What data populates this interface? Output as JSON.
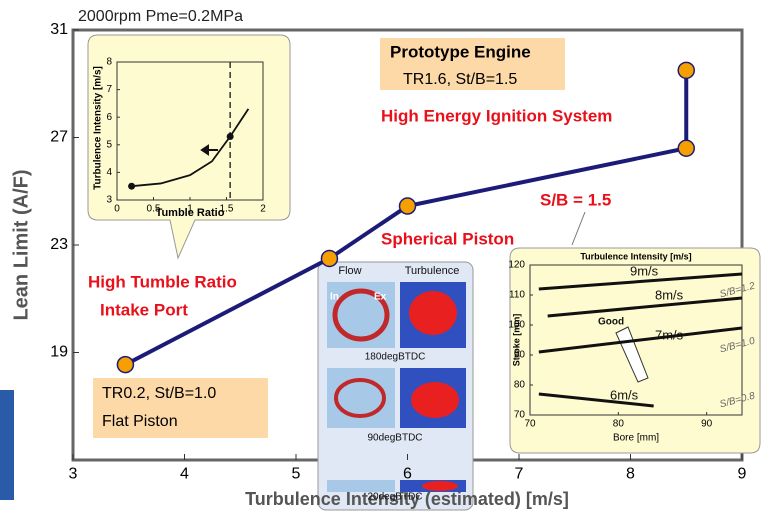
{
  "chart_data": [
    {
      "type": "line",
      "title": "2000rpm Pme=0.2MPa",
      "x_label": "Turbulence Intensity (estimated) [m/s]",
      "y_label": "Lean Limit (A/F)",
      "x": [
        3.47,
        5.3,
        6.0,
        8.5,
        8.5
      ],
      "values": [
        18.55,
        22.5,
        24.45,
        26.6,
        29.5
      ],
      "color": "#1c1c78",
      "marker_color": "#f5a000",
      "xlim": [
        3,
        9
      ],
      "ylim": [
        15,
        31
      ],
      "xticks": [
        3,
        4,
        5,
        6,
        7,
        8,
        9
      ],
      "yticks": [
        19,
        23,
        27,
        31
      ],
      "annotations": [
        "Prototype Engine",
        "TR1.6,  St/B=1.5",
        "High Energy Ignition System",
        "S/B = 1.5",
        "Spherical Piston",
        "High Tumble Ratio",
        "Intake Port",
        "TR0.2,  St/B=1.0",
        "Flat Piston"
      ]
    },
    {
      "type": "line",
      "x_label": "Tumble Ratio",
      "y_label": "Turbulence Intensity [m/s]",
      "x": [
        0.2,
        0.6,
        1.0,
        1.3,
        1.55,
        1.8
      ],
      "values": [
        3.5,
        3.6,
        3.9,
        4.4,
        5.3,
        6.3
      ],
      "color": "#111111",
      "points": {
        "x": [
          0.2,
          1.55
        ],
        "values": [
          3.5,
          5.3
        ]
      },
      "reference_x": 1.55,
      "xlim": [
        0,
        2
      ],
      "ylim": [
        3,
        8
      ],
      "xticks": [
        0,
        0.5,
        1,
        1.5,
        2
      ],
      "yticks": [
        3,
        4,
        5,
        6,
        7,
        8
      ]
    },
    {
      "type": "line",
      "title": "Turbulence Intensity [m/s]",
      "x_label": "Bore [mm]",
      "y_label": "Stroke [mm]",
      "color": "#111111",
      "series": [
        {
          "name": "9m/s",
          "x": [
            71,
            94
          ],
          "values": [
            112,
            117
          ]
        },
        {
          "name": "8m/s",
          "x": [
            72,
            94
          ],
          "values": [
            103,
            109
          ]
        },
        {
          "name": "7m/s",
          "x": [
            71,
            94
          ],
          "values": [
            91,
            99
          ]
        },
        {
          "name": "6m/s",
          "x": [
            71,
            84
          ],
          "values": [
            77,
            73
          ]
        }
      ],
      "xlim": [
        70,
        94
      ],
      "ylim": [
        70,
        120
      ],
      "xticks": [
        70,
        80,
        90
      ],
      "yticks": [
        70,
        80,
        90,
        100,
        110,
        120
      ],
      "annotations": [
        "S/B=1.2",
        "S/B=1.0",
        "S/B=0.8",
        "Good"
      ]
    }
  ],
  "flow_panel": {
    "labels": [
      "Flow",
      "Turbulence",
      "In",
      "Ex",
      "180degBTDC",
      "90degBTDC",
      "20degBTDC"
    ]
  }
}
